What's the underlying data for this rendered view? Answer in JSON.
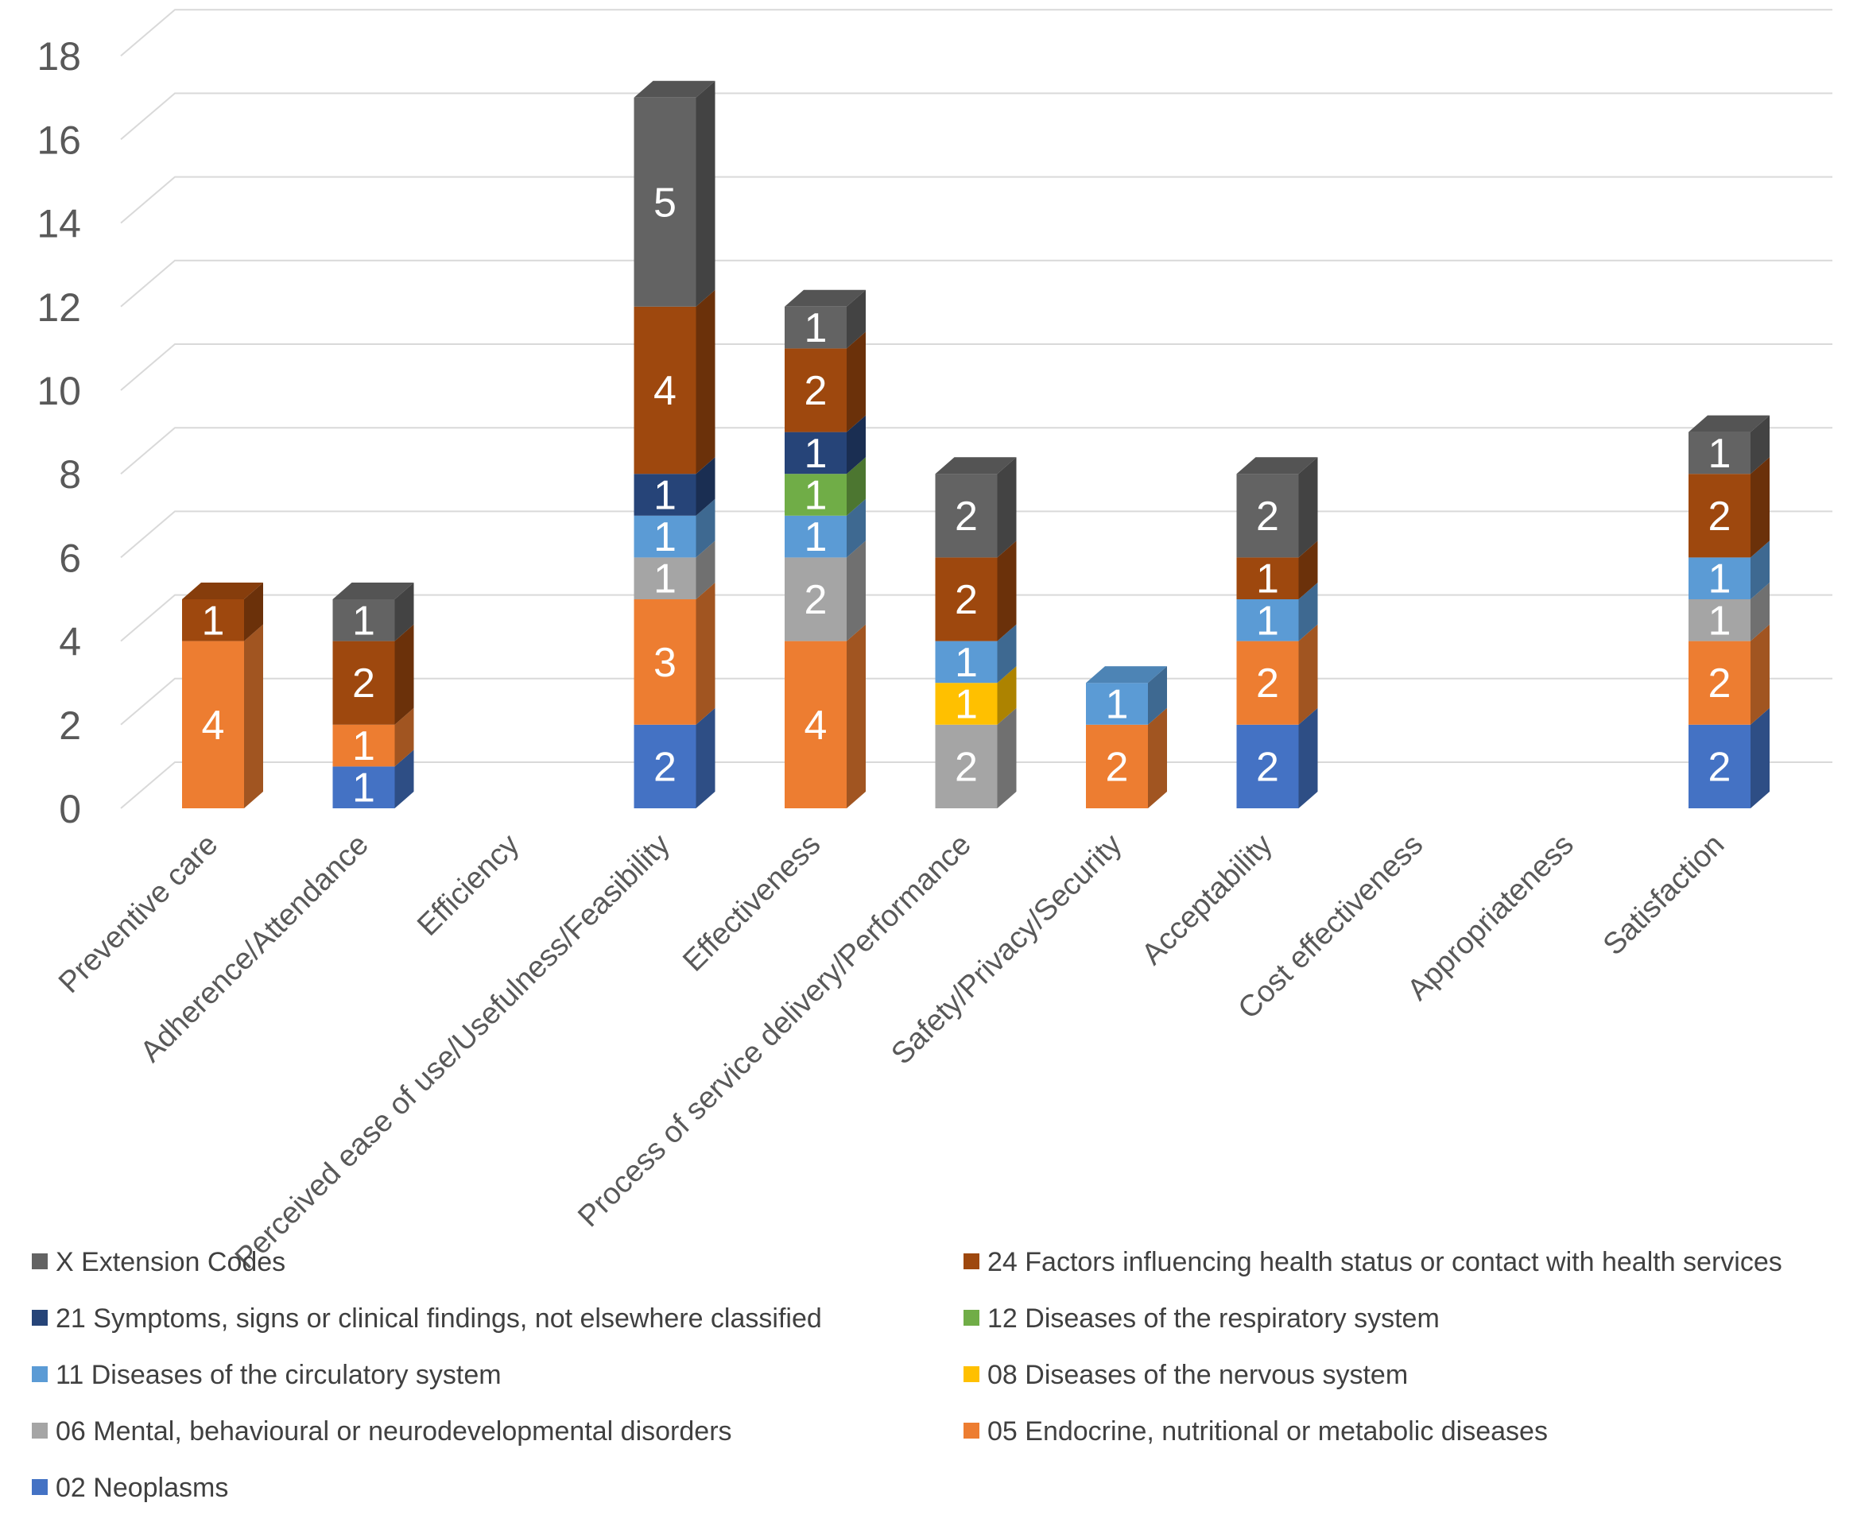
{
  "chart_data": {
    "type": "bar",
    "stacked": true,
    "style": "3d-column",
    "categories": [
      "Preventive care",
      "Adherence/Attendance",
      "Efficiency",
      "Perceived ease of use/Usefulness/Feasibility",
      "Effectiveness",
      "Process of service delivery/Performance",
      "Safety/Privacy/Security",
      "Acceptability",
      "Cost effectiveness",
      "Appropriateness",
      "Satisfaction"
    ],
    "series": [
      {
        "name": "02 Neoplasms",
        "color": "#4472C4",
        "values": [
          0,
          1,
          0,
          2,
          0,
          0,
          0,
          2,
          0,
          0,
          2
        ]
      },
      {
        "name": "05 Endocrine, nutritional or metabolic diseases",
        "color": "#ED7D31",
        "values": [
          4,
          1,
          0,
          3,
          4,
          0,
          2,
          2,
          0,
          0,
          2
        ]
      },
      {
        "name": "06 Mental, behavioural or neurodevelopmental disorders",
        "color": "#A5A5A5",
        "values": [
          0,
          0,
          0,
          1,
          2,
          2,
          0,
          0,
          0,
          0,
          1
        ]
      },
      {
        "name": "08 Diseases of the nervous system",
        "color": "#FFC000",
        "values": [
          0,
          0,
          0,
          0,
          0,
          1,
          0,
          0,
          0,
          0,
          0
        ]
      },
      {
        "name": "11 Diseases of the circulatory system",
        "color": "#5B9BD5",
        "values": [
          0,
          0,
          0,
          1,
          1,
          1,
          1,
          1,
          0,
          0,
          1
        ]
      },
      {
        "name": "12 Diseases of the respiratory system",
        "color": "#70AD47",
        "values": [
          0,
          0,
          0,
          0,
          1,
          0,
          0,
          0,
          0,
          0,
          0
        ]
      },
      {
        "name": "21 Symptoms, signs or clinical findings, not elsewhere classified",
        "color": "#264478",
        "values": [
          0,
          0,
          0,
          1,
          1,
          0,
          0,
          0,
          0,
          0,
          0
        ]
      },
      {
        "name": "24 Factors influencing health status or contact with health services",
        "color": "#9E480E",
        "values": [
          1,
          2,
          0,
          4,
          2,
          2,
          0,
          1,
          0,
          0,
          2
        ]
      },
      {
        "name": "X Extension Codes",
        "color": "#636363",
        "values": [
          0,
          1,
          0,
          5,
          1,
          2,
          0,
          2,
          0,
          0,
          1
        ]
      }
    ],
    "ylim": [
      0,
      18
    ],
    "yticks": [
      0,
      2,
      4,
      6,
      8,
      10,
      12,
      14,
      16,
      18
    ],
    "title": "",
    "xlabel": "",
    "ylabel": "",
    "grid": true,
    "legend_position": "bottom",
    "legend_order": [
      "X Extension Codes",
      "24 Factors influencing health status or contact with health services",
      "21 Symptoms, signs or clinical findings, not elsewhere classified",
      "12 Diseases of the respiratory system",
      "11 Diseases of the circulatory system",
      "08 Diseases of the nervous system",
      "06 Mental, behavioural or neurodevelopmental disorders",
      "05 Endocrine, nutritional or metabolic diseases",
      "02 Neoplasms"
    ],
    "data_labels": true
  }
}
